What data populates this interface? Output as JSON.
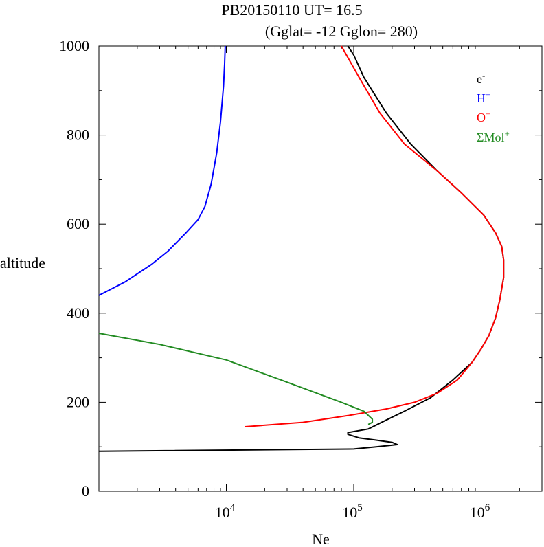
{
  "chart_data": {
    "type": "line",
    "title_line1": "PB20150110   UT=  16.5",
    "title_line2": "(Gglat= -12   Gglon=  280)",
    "xlabel": "Ne",
    "ylabel": "altitude",
    "x_scale": "log",
    "xlim": [
      1000,
      3000000
    ],
    "ylim": [
      0,
      1000
    ],
    "x_ticks": [
      {
        "value": 10000,
        "base": "10",
        "exp": "4"
      },
      {
        "value": 100000,
        "base": "10",
        "exp": "5"
      },
      {
        "value": 1000000,
        "base": "10",
        "exp": "6"
      }
    ],
    "y_ticks": [
      {
        "value": 0,
        "label": "0"
      },
      {
        "value": 200,
        "label": "200"
      },
      {
        "value": 400,
        "label": "400"
      },
      {
        "value": 600,
        "label": "600"
      },
      {
        "value": 800,
        "label": "800"
      },
      {
        "value": 1000,
        "label": "1000"
      }
    ],
    "legend_position": "top-right",
    "series": [
      {
        "name_base": "e",
        "name_sup": "-",
        "color": "#000000",
        "points": [
          [
            1000,
            90
          ],
          [
            100000,
            95
          ],
          [
            150000,
            100
          ],
          [
            220000,
            105
          ],
          [
            200000,
            110
          ],
          [
            150000,
            115
          ],
          [
            110000,
            120
          ],
          [
            90000,
            128
          ],
          [
            90000,
            132
          ],
          [
            130000,
            140
          ],
          [
            180000,
            160
          ],
          [
            250000,
            180
          ],
          [
            400000,
            210
          ],
          [
            600000,
            250
          ],
          [
            850000,
            290
          ],
          [
            1000000,
            320
          ],
          [
            1150000,
            350
          ],
          [
            1300000,
            390
          ],
          [
            1400000,
            430
          ],
          [
            1500000,
            480
          ],
          [
            1500000,
            520
          ],
          [
            1450000,
            550
          ],
          [
            1300000,
            580
          ],
          [
            1050000,
            620
          ],
          [
            700000,
            670
          ],
          [
            450000,
            720
          ],
          [
            280000,
            780
          ],
          [
            180000,
            850
          ],
          [
            120000,
            930
          ],
          [
            100000,
            980
          ],
          [
            90000,
            1000
          ]
        ]
      },
      {
        "name_base": "H",
        "name_sup": "+",
        "color": "#0000ff",
        "points": [
          [
            1000,
            440
          ],
          [
            1600,
            470
          ],
          [
            2600,
            510
          ],
          [
            3500,
            540
          ],
          [
            4800,
            580
          ],
          [
            6000,
            610
          ],
          [
            6800,
            640
          ],
          [
            7600,
            690
          ],
          [
            8400,
            760
          ],
          [
            9000,
            830
          ],
          [
            9500,
            910
          ],
          [
            9700,
            960
          ],
          [
            9800,
            1000
          ]
        ]
      },
      {
        "name_base": "O",
        "name_sup": "+",
        "color": "#ff0000",
        "points": [
          [
            14000,
            145
          ],
          [
            40000,
            155
          ],
          [
            90000,
            170
          ],
          [
            180000,
            185
          ],
          [
            300000,
            200
          ],
          [
            450000,
            220
          ],
          [
            650000,
            250
          ],
          [
            850000,
            290
          ],
          [
            1000000,
            320
          ],
          [
            1150000,
            350
          ],
          [
            1300000,
            390
          ],
          [
            1400000,
            430
          ],
          [
            1500000,
            480
          ],
          [
            1500000,
            520
          ],
          [
            1450000,
            550
          ],
          [
            1300000,
            580
          ],
          [
            1050000,
            620
          ],
          [
            700000,
            670
          ],
          [
            450000,
            720
          ],
          [
            250000,
            780
          ],
          [
            160000,
            850
          ],
          [
            110000,
            930
          ],
          [
            80000,
            1000
          ]
        ]
      },
      {
        "name_base": "ΣMol",
        "name_sup": "+",
        "color": "#228b22",
        "points": [
          [
            1000,
            355
          ],
          [
            3000,
            330
          ],
          [
            10000,
            295
          ],
          [
            30000,
            245
          ],
          [
            80000,
            200
          ],
          [
            120000,
            180
          ],
          [
            140000,
            162
          ],
          [
            140000,
            155
          ],
          [
            130000,
            150
          ]
        ]
      }
    ]
  }
}
